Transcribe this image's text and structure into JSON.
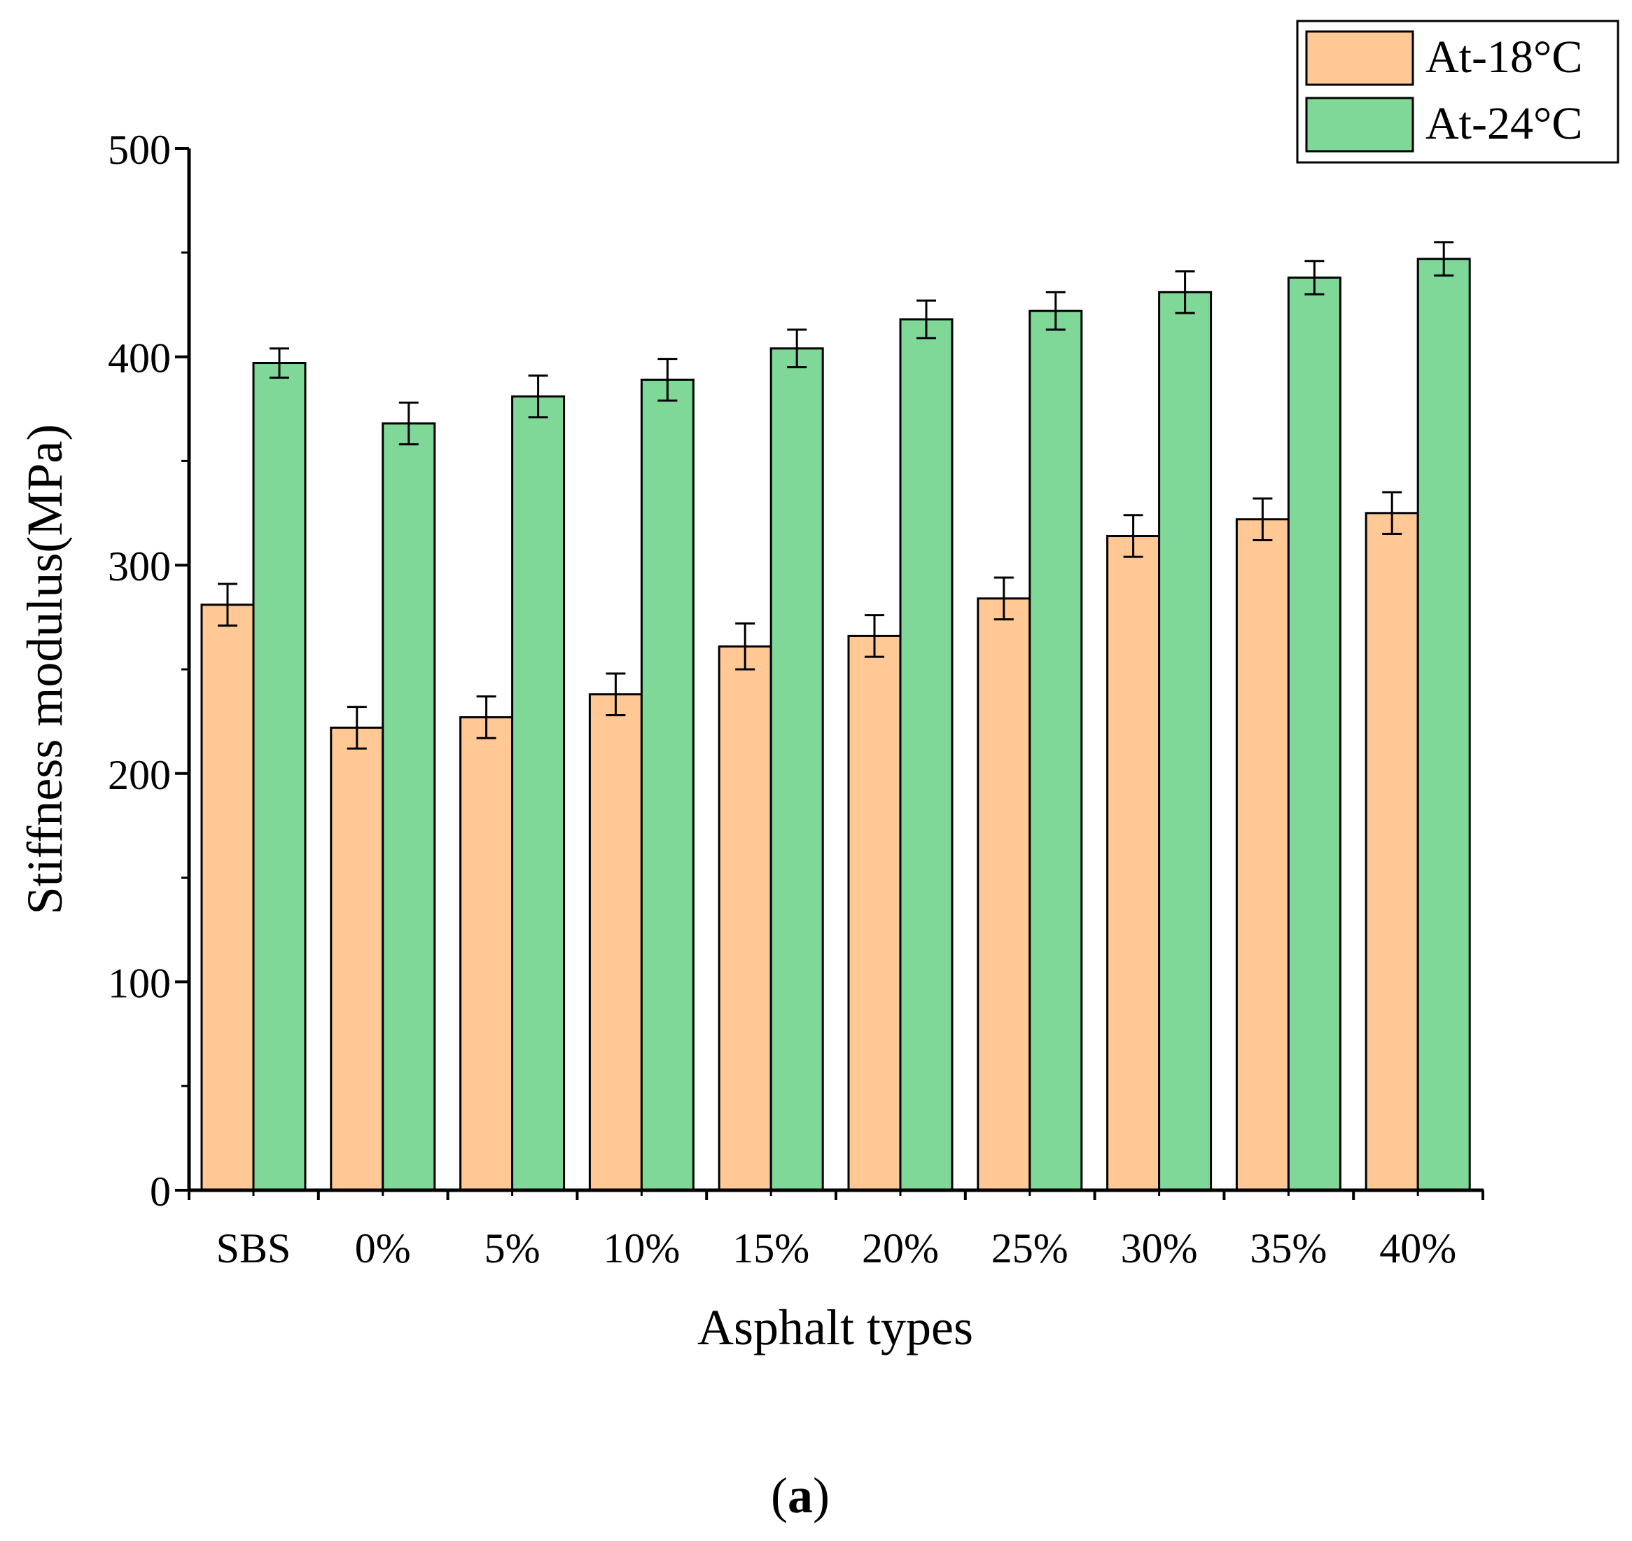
{
  "chart_data": {
    "type": "bar",
    "title": "",
    "xlabel": "Asphalt types",
    "ylabel": "Stiffness modulus(MPa)",
    "ylim": [
      0,
      500
    ],
    "yticks": [
      0,
      100,
      200,
      300,
      400,
      500
    ],
    "ytick_labels": [
      "0",
      "100",
      "200",
      "300",
      "400",
      "500"
    ],
    "categories": [
      "SBS",
      "0%",
      "5%",
      "10%",
      "15%",
      "20%",
      "25%",
      "30%",
      "35%",
      "40%"
    ],
    "series": [
      {
        "name": "At-18°C",
        "color": "#FFC895",
        "values": [
          281,
          222,
          227,
          238,
          261,
          266,
          284,
          314,
          322,
          325
        ],
        "errors": [
          10,
          10,
          10,
          10,
          11,
          10,
          10,
          10,
          10,
          10
        ]
      },
      {
        "name": "At-24°C",
        "color": "#7FD898",
        "values": [
          397,
          368,
          381,
          389,
          404,
          418,
          422,
          431,
          438,
          447
        ],
        "errors": [
          7,
          10,
          10,
          10,
          9,
          9,
          9,
          10,
          8,
          8
        ]
      }
    ],
    "legend_position": "top-right",
    "grid": false
  },
  "panel_label": {
    "open": "(",
    "letter": "a",
    "close": ")"
  }
}
